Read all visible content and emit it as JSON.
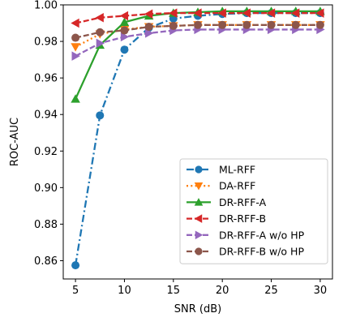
{
  "chart_data": {
    "type": "line",
    "xlabel": "SNR (dB)",
    "ylabel": "ROC-AUC",
    "xlim": [
      3.75,
      31.25
    ],
    "ylim": [
      0.85,
      1.0
    ],
    "xticks": [
      5,
      10,
      15,
      20,
      25,
      30
    ],
    "yticks": [
      0.86,
      0.88,
      0.9,
      0.92,
      0.94,
      0.96,
      0.98,
      1.0
    ],
    "xtick_labels": [
      "5",
      "10",
      "15",
      "20",
      "25",
      "30"
    ],
    "ytick_labels": [
      "0.86",
      "0.88",
      "0.90",
      "0.92",
      "0.94",
      "0.96",
      "0.98",
      "1.00"
    ],
    "grid": false,
    "legend_position": "lower-right",
    "x": [
      5,
      7.5,
      10,
      12.5,
      15,
      17.5,
      20,
      22.5,
      25,
      27.5,
      30
    ],
    "series": [
      {
        "name": "ML-RFF",
        "color": "#1f77b4",
        "line_style": "dashdot",
        "marker": "circle",
        "values": [
          0.8575,
          0.9395,
          0.9755,
          0.9875,
          0.9925,
          0.994,
          0.995,
          0.9955,
          0.9955,
          0.9955,
          0.9955
        ]
      },
      {
        "name": "DA-RFF",
        "color": "#ff7f0e",
        "line_style": "dotted",
        "marker": "triangle-down",
        "values": [
          0.977,
          0.984,
          0.9865,
          0.988,
          0.9885,
          0.989,
          0.989,
          0.989,
          0.989,
          0.989,
          0.989
        ]
      },
      {
        "name": "DR-RFF-A",
        "color": "#2ca02c",
        "line_style": "solid",
        "marker": "triangle-up",
        "values": [
          0.9485,
          0.978,
          0.9905,
          0.994,
          0.9955,
          0.996,
          0.9965,
          0.9965,
          0.9965,
          0.9965,
          0.9965
        ]
      },
      {
        "name": "DR-RFF-B",
        "color": "#d62728",
        "line_style": "dashed",
        "marker": "triangle-left",
        "values": [
          0.99,
          0.993,
          0.994,
          0.995,
          0.9955,
          0.9955,
          0.9955,
          0.9955,
          0.9955,
          0.9955,
          0.9955
        ]
      },
      {
        "name": "DR-RFF-A w/o HP",
        "color": "#9467bd",
        "line_style": "dashed",
        "marker": "triangle-right",
        "values": [
          0.972,
          0.979,
          0.9825,
          0.9845,
          0.986,
          0.9865,
          0.9865,
          0.9865,
          0.9865,
          0.9865,
          0.9865
        ]
      },
      {
        "name": "DR-RFF-B w/o HP",
        "color": "#8c564b",
        "line_style": "dashed",
        "marker": "circle",
        "values": [
          0.982,
          0.985,
          0.986,
          0.988,
          0.9885,
          0.989,
          0.989,
          0.989,
          0.989,
          0.989,
          0.989
        ]
      }
    ]
  }
}
